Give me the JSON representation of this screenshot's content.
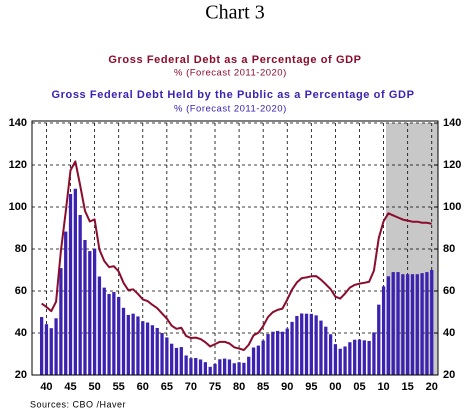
{
  "chart_data": {
    "type": "bar_line",
    "title": "Chart 3",
    "source": "Sources:  CBO /Haver",
    "x": [
      1939,
      1940,
      1941,
      1942,
      1943,
      1944,
      1945,
      1946,
      1947,
      1948,
      1949,
      1950,
      1951,
      1952,
      1953,
      1954,
      1955,
      1956,
      1957,
      1958,
      1959,
      1960,
      1961,
      1962,
      1963,
      1964,
      1965,
      1966,
      1967,
      1968,
      1969,
      1970,
      1971,
      1972,
      1973,
      1974,
      1975,
      1976,
      1977,
      1978,
      1979,
      1980,
      1981,
      1982,
      1983,
      1984,
      1985,
      1986,
      1987,
      1988,
      1989,
      1990,
      1991,
      1992,
      1993,
      1994,
      1995,
      1996,
      1997,
      1998,
      1999,
      2000,
      2001,
      2002,
      2003,
      2004,
      2005,
      2006,
      2007,
      2008,
      2009,
      2010,
      2011,
      2012,
      2013,
      2014,
      2015,
      2016,
      2017,
      2018,
      2019,
      2020
    ],
    "series": [
      {
        "name": "Gross Federal Debt as a Percentage of GDP",
        "note": "%   (Forecast 2011-2020)",
        "kind": "line",
        "color": "#8b0c2c",
        "values": [
          54,
          52.4,
          50.4,
          54.9,
          79.1,
          97.6,
          117.5,
          121.7,
          110.3,
          98.2,
          93.1,
          94.1,
          79.7,
          74.3,
          71.4,
          71.8,
          69.3,
          63.9,
          60.4,
          60.8,
          58.6,
          56.0,
          55.2,
          53.4,
          51.8,
          49.3,
          46.9,
          43.5,
          42.0,
          42.5,
          38.6,
          37.6,
          37.8,
          37.1,
          35.6,
          33.6,
          34.7,
          35.8,
          35.8,
          35.0,
          33.2,
          32.6,
          31.9,
          34.4,
          38.9,
          40.1,
          43.3,
          47.6,
          49.9,
          51.0,
          51.6,
          55.9,
          60.7,
          64.1,
          66.1,
          66.5,
          67.0,
          67.1,
          65.4,
          63.2,
          60.9,
          57.3,
          56.4,
          58.8,
          61.6,
          62.9,
          63.5,
          63.9,
          64.4,
          69.7,
          85.2,
          93.2,
          97,
          96,
          95,
          94,
          93.5,
          93,
          93,
          92.5,
          92.5,
          92
        ]
      },
      {
        "name": "Gross Federal Debt Held by the Public as a Percentage of GDP",
        "note": "%   (Forecast 2011-2020)",
        "kind": "bar",
        "color": "#3b22b0",
        "values": [
          47.6,
          44.2,
          42.3,
          47.0,
          70.9,
          88.3,
          106.2,
          108.7,
          96.2,
          84.3,
          79.0,
          80.2,
          66.9,
          61.6,
          58.6,
          59.5,
          57.2,
          52.0,
          48.6,
          49.2,
          47.9,
          45.6,
          45.0,
          43.7,
          42.4,
          40.0,
          37.9,
          34.9,
          32.9,
          33.3,
          29.3,
          28.0,
          28.1,
          27.4,
          26.1,
          23.9,
          25.3,
          27.5,
          27.8,
          27.4,
          25.6,
          26.1,
          25.8,
          28.7,
          33.1,
          34.0,
          36.4,
          39.5,
          40.6,
          41.0,
          40.6,
          42.1,
          45.3,
          48.1,
          49.3,
          49.2,
          49.1,
          48.4,
          45.9,
          43.0,
          39.4,
          34.7,
          32.5,
          33.6,
          35.6,
          36.8,
          36.9,
          36.5,
          36.2,
          40.3,
          53.5,
          62.2,
          67,
          69,
          69,
          68,
          68,
          68,
          68,
          68.5,
          69,
          70
        ]
      }
    ],
    "xlim": [
      1937,
      2021.3
    ],
    "xticks": [
      {
        "value": 1940,
        "label": "40"
      },
      {
        "value": 1945,
        "label": "45"
      },
      {
        "value": 1950,
        "label": "50"
      },
      {
        "value": 1955,
        "label": "55"
      },
      {
        "value": 1960,
        "label": "60"
      },
      {
        "value": 1965,
        "label": "65"
      },
      {
        "value": 1970,
        "label": "70"
      },
      {
        "value": 1975,
        "label": "75"
      },
      {
        "value": 1980,
        "label": "80"
      },
      {
        "value": 1985,
        "label": "85"
      },
      {
        "value": 1990,
        "label": "90"
      },
      {
        "value": 1995,
        "label": "95"
      },
      {
        "value": 2000,
        "label": "00"
      },
      {
        "value": 2005,
        "label": "05"
      },
      {
        "value": 2010,
        "label": "10"
      },
      {
        "value": 2015,
        "label": "15"
      },
      {
        "value": 2020,
        "label": "20"
      }
    ],
    "ylim": [
      20,
      140
    ],
    "yticks": [
      20,
      40,
      60,
      80,
      100,
      120,
      140
    ],
    "y2lim": [
      20,
      140
    ],
    "y2ticks": [
      20,
      40,
      60,
      80,
      100,
      120,
      140
    ],
    "forecast_shade": [
      2010.5,
      2021.3
    ],
    "grid": true
  }
}
